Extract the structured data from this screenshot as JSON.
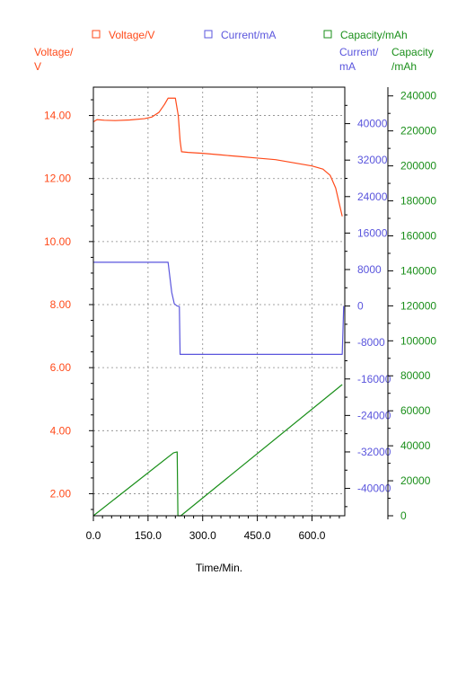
{
  "chart_data": {
    "type": "line",
    "xlabel": "Time/Min.",
    "xlim": [
      0,
      690
    ],
    "x_ticks": [
      "0.0",
      "150.0",
      "300.0",
      "450.0",
      "600.0"
    ],
    "x_tick_values": [
      0,
      150,
      300,
      450,
      600
    ],
    "colors": {
      "voltage": "#ff4a1a",
      "current": "#5a55dd",
      "capacity": "#1a8f1a",
      "grid": "#888888",
      "frame": "#000000"
    },
    "legend": {
      "placement": "top",
      "voltage_label": "Voltage/V",
      "current_label": "Current/mA",
      "capacity_label": "Capacity/mAh"
    },
    "axes": {
      "voltage": {
        "label_line1": "Voltage/",
        "label_line2": "V",
        "ylim": [
          1.3,
          14.9
        ],
        "ticks": [
          "14.00",
          "12.00",
          "10.00",
          "8.00",
          "6.00",
          "4.00",
          "2.00"
        ],
        "tick_values": [
          14,
          12,
          10,
          8,
          6,
          4,
          2
        ]
      },
      "current": {
        "label_line1": "Current/",
        "label_line2": "mA",
        "ylim": [
          -46000,
          48000
        ],
        "ticks": [
          "40000",
          "32000",
          "24000",
          "16000",
          "8000",
          "0",
          "-8000",
          "-16000",
          "-24000",
          "-32000",
          "-40000"
        ],
        "tick_values": [
          40000,
          32000,
          24000,
          16000,
          8000,
          0,
          -8000,
          -16000,
          -24000,
          -32000,
          -40000
        ]
      },
      "capacity": {
        "label_line1": "Capacity",
        "label_line2": "/mAh",
        "ylim": [
          0,
          245000
        ],
        "ticks": [
          "240000",
          "220000",
          "200000",
          "180000",
          "160000",
          "140000",
          "120000",
          "100000",
          "80000",
          "60000",
          "40000",
          "20000",
          "0"
        ],
        "tick_values": [
          240000,
          220000,
          200000,
          180000,
          160000,
          140000,
          120000,
          100000,
          80000,
          60000,
          40000,
          20000,
          0
        ]
      }
    },
    "series": [
      {
        "name": "Voltage/V",
        "axis": "voltage",
        "points": [
          [
            0,
            13.8
          ],
          [
            10,
            13.87
          ],
          [
            30,
            13.85
          ],
          [
            60,
            13.84
          ],
          [
            100,
            13.86
          ],
          [
            140,
            13.9
          ],
          [
            160,
            13.95
          ],
          [
            180,
            14.1
          ],
          [
            195,
            14.35
          ],
          [
            205,
            14.55
          ],
          [
            225,
            14.55
          ],
          [
            233,
            14.0
          ],
          [
            238,
            13.2
          ],
          [
            242,
            12.85
          ],
          [
            260,
            12.83
          ],
          [
            300,
            12.8
          ],
          [
            350,
            12.75
          ],
          [
            400,
            12.7
          ],
          [
            450,
            12.65
          ],
          [
            500,
            12.6
          ],
          [
            550,
            12.5
          ],
          [
            600,
            12.4
          ],
          [
            630,
            12.3
          ],
          [
            650,
            12.1
          ],
          [
            665,
            11.7
          ],
          [
            675,
            11.2
          ],
          [
            683,
            10.8
          ]
        ]
      },
      {
        "name": "Current/mA",
        "axis": "current",
        "points": [
          [
            0,
            9600
          ],
          [
            205,
            9600
          ],
          [
            215,
            3000
          ],
          [
            222,
            500
          ],
          [
            230,
            0
          ],
          [
            236,
            -100
          ],
          [
            238,
            -10600
          ],
          [
            683,
            -10600
          ],
          [
            687,
            0
          ]
        ]
      },
      {
        "name": "Capacity/mAh",
        "axis": "capacity",
        "points": [
          [
            0,
            0
          ],
          [
            220,
            36000
          ],
          [
            230,
            36500
          ],
          [
            232,
            0
          ],
          [
            240,
            0
          ],
          [
            683,
            75000
          ]
        ]
      }
    ]
  }
}
